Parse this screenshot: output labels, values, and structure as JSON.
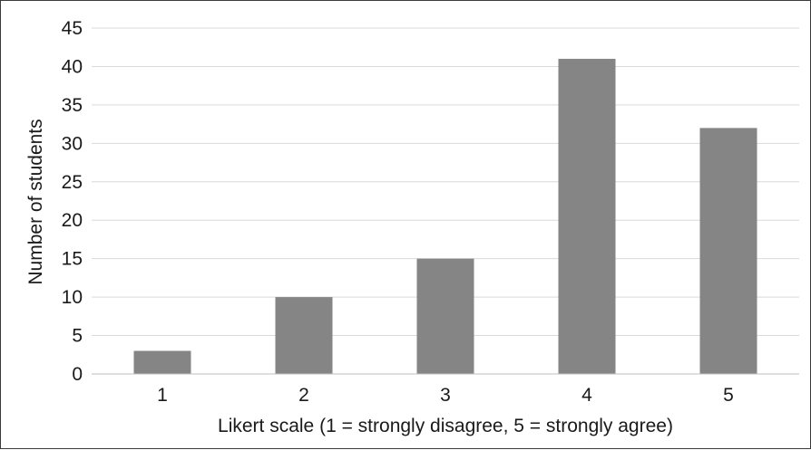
{
  "chart_data": {
    "type": "bar",
    "title": "",
    "xlabel": "Likert scale (1 = strongly disagree, 5 = strongly agree)",
    "ylabel": "Number of students",
    "categories": [
      "1",
      "2",
      "3",
      "4",
      "5"
    ],
    "values": [
      3,
      10,
      15,
      41,
      32
    ],
    "ylim": [
      0,
      45
    ],
    "yticks": [
      "0",
      "5",
      "10",
      "15",
      "20",
      "25",
      "30",
      "35",
      "40",
      "45"
    ],
    "grid": true,
    "legend": "none",
    "colors": {
      "bar": "#858585",
      "grid": "#d9d9d9",
      "axis": "#bfbfbf",
      "text": "#1a1a1a"
    }
  }
}
